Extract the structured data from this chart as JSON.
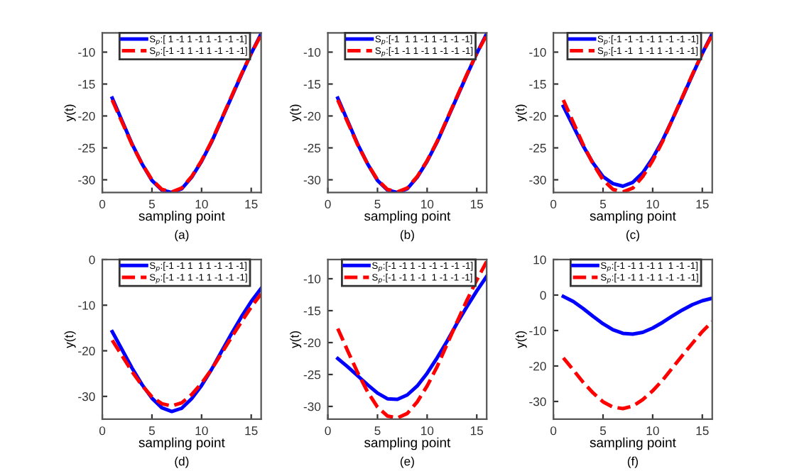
{
  "chart_data": [
    {
      "type": "line",
      "xlabel": "sampling point",
      "ylabel": "y(t)",
      "annotations": [
        "(a)"
      ],
      "x": [
        1,
        2,
        3,
        4,
        5,
        6,
        7,
        8,
        9,
        10,
        11,
        12,
        13,
        14,
        15,
        16
      ],
      "xlim": [
        0,
        16
      ],
      "xticks": [
        0,
        5,
        10,
        15
      ],
      "ylim": [
        -32,
        -7
      ],
      "yticks": [
        -30,
        -25,
        -20,
        -15,
        -10
      ],
      "legend": "top right",
      "grid": false,
      "series": [
        {
          "name": "S$_{p}$:[ 1 -1 1 -1 1 -1 -1 -1]",
          "color": "#0000ff",
          "line_style": "solid",
          "values": [
            -17.2,
            -20.8,
            -24.4,
            -27.5,
            -30.1,
            -31.6,
            -32,
            -31.4,
            -29.6,
            -27.1,
            -24.1,
            -20.6,
            -17.1,
            -13.6,
            -10.2,
            -7.1
          ]
        },
        {
          "name": "S$_{p}$:[-1 -1 1 -1 1 -1 -1 -1]",
          "color": "#ff0000",
          "line_style": "dashed",
          "values": [
            -17.5,
            -21,
            -24.5,
            -27.5,
            -30,
            -31.5,
            -31.9,
            -31.3,
            -29.5,
            -27,
            -24,
            -20.5,
            -17,
            -13.5,
            -10.2,
            -7.3
          ]
        }
      ]
    },
    {
      "type": "line",
      "xlabel": "sampling point",
      "ylabel": "y(t)",
      "annotations": [
        "(b)"
      ],
      "x": [
        1,
        2,
        3,
        4,
        5,
        6,
        7,
        8,
        9,
        10,
        11,
        12,
        13,
        14,
        15,
        16
      ],
      "xlim": [
        0,
        16
      ],
      "xticks": [
        0,
        5,
        10,
        15
      ],
      "ylim": [
        -32,
        -7
      ],
      "yticks": [
        -30,
        -25,
        -20,
        -15,
        -10
      ],
      "legend": "top right",
      "grid": false,
      "series": [
        {
          "name": "S$_{p}$:[-1  1 1 -1 1 -1 -1 -1]",
          "color": "#0000ff",
          "line_style": "solid",
          "values": [
            -17.2,
            -20.8,
            -24.4,
            -27.5,
            -30.1,
            -31.6,
            -32,
            -31.4,
            -29.6,
            -27.1,
            -24.1,
            -20.6,
            -17.1,
            -13.6,
            -10.2,
            -7.1
          ]
        },
        {
          "name": "S$_{p}$:[-1 -1 1 -1 1 -1 -1 -1]",
          "color": "#ff0000",
          "line_style": "dashed",
          "values": [
            -17.5,
            -21,
            -24.5,
            -27.5,
            -30,
            -31.5,
            -31.9,
            -31.3,
            -29.5,
            -27,
            -24,
            -20.5,
            -17,
            -13.5,
            -10.2,
            -7.3
          ]
        }
      ]
    },
    {
      "type": "line",
      "xlabel": "sampling point",
      "ylabel": "y(t)",
      "annotations": [
        "(c)"
      ],
      "x": [
        1,
        2,
        3,
        4,
        5,
        6,
        7,
        8,
        9,
        10,
        11,
        12,
        13,
        14,
        15,
        16
      ],
      "xlim": [
        0,
        16
      ],
      "xticks": [
        0,
        5,
        10,
        15
      ],
      "ylim": [
        -32,
        -7
      ],
      "yticks": [
        -30,
        -25,
        -20,
        -15,
        -10
      ],
      "legend": "top right",
      "grid": false,
      "series": [
        {
          "name": "S$_{p}$:[-1 -1 -1 -1 1 -1 -1 -1]",
          "color": "#0000ff",
          "line_style": "solid",
          "values": [
            -18.5,
            -21.6,
            -24.7,
            -27.4,
            -29.5,
            -30.6,
            -31,
            -30.4,
            -28.9,
            -26.6,
            -23.8,
            -20.5,
            -17.1,
            -13.6,
            -10.2,
            -7.1
          ]
        },
        {
          "name": "S$_{p}$:[-1 -1  1 -1 1 -1 -1 -1]",
          "color": "#ff0000",
          "line_style": "dashed",
          "values": [
            -17.5,
            -21,
            -24.5,
            -27.5,
            -30,
            -31.5,
            -31.9,
            -31.3,
            -29.5,
            -27,
            -24,
            -20.5,
            -17,
            -13.5,
            -10.2,
            -7.3
          ]
        }
      ]
    },
    {
      "type": "line",
      "xlabel": "sampling point",
      "ylabel": "y(t)",
      "annotations": [
        "(d)"
      ],
      "x": [
        1,
        2,
        3,
        4,
        5,
        6,
        7,
        8,
        9,
        10,
        11,
        12,
        13,
        14,
        15,
        16
      ],
      "xlim": [
        0,
        16
      ],
      "xticks": [
        0,
        5,
        10,
        15
      ],
      "ylim": [
        -35,
        0
      ],
      "yticks": [
        -30,
        -20,
        -10,
        0
      ],
      "legend": "top right",
      "grid": false,
      "series": [
        {
          "name": "S$_{p}$:[-1 -1 1  1 1 -1 -1 -1]",
          "color": "#0000ff",
          "line_style": "solid",
          "values": [
            -15.8,
            -19.8,
            -23.8,
            -27.4,
            -30.4,
            -32.5,
            -33.3,
            -32.6,
            -30.5,
            -27.6,
            -24.1,
            -20.2,
            -16.3,
            -12.6,
            -9.2,
            -6.3
          ]
        },
        {
          "name": "S$_{p}$:[-1 -1 1 -1 1 -1 -1 -1]",
          "color": "#ff0000",
          "line_style": "dashed",
          "values": [
            -17.7,
            -21.1,
            -24.6,
            -27.6,
            -30.1,
            -31.6,
            -32.1,
            -31.4,
            -29.6,
            -27.1,
            -24.1,
            -20.6,
            -17.1,
            -13.7,
            -10.4,
            -7.5
          ]
        }
      ]
    },
    {
      "type": "line",
      "xlabel": "sampling point",
      "ylabel": "y(t)",
      "annotations": [
        "(e)"
      ],
      "x": [
        1,
        2,
        3,
        4,
        5,
        6,
        7,
        8,
        9,
        10,
        11,
        12,
        13,
        14,
        15,
        16
      ],
      "xlim": [
        0,
        16
      ],
      "xticks": [
        0,
        5,
        10,
        15
      ],
      "ylim": [
        -32,
        -7
      ],
      "yticks": [
        -30,
        -25,
        -20,
        -15,
        -10
      ],
      "legend": "top right",
      "grid": false,
      "series": [
        {
          "name": "S$_{p}$:[-1 -1 1 -1 -1 -1 -1 -1]",
          "color": "#0000ff",
          "line_style": "solid",
          "values": [
            -22.5,
            -23.8,
            -25.2,
            -26.6,
            -27.9,
            -28.8,
            -28.9,
            -28.2,
            -26.8,
            -24.8,
            -22.4,
            -19.8,
            -17,
            -14.4,
            -11.9,
            -9.6
          ]
        },
        {
          "name": "S$_{p}$:[-1 -1 1 -1  1 -1 -1 -1]",
          "color": "#ff0000",
          "line_style": "dashed",
          "values": [
            -17.8,
            -21.3,
            -24.7,
            -27.7,
            -30.1,
            -31.5,
            -31.8,
            -31.1,
            -29.3,
            -26.8,
            -23.8,
            -20.3,
            -16.8,
            -13.4,
            -10.2,
            -7.3
          ]
        }
      ]
    },
    {
      "type": "line",
      "xlabel": "sampling point",
      "ylabel": "y(t)",
      "annotations": [
        "(f)"
      ],
      "x": [
        1,
        2,
        3,
        4,
        5,
        6,
        7,
        8,
        9,
        10,
        11,
        12,
        13,
        14,
        15,
        16
      ],
      "xlim": [
        0,
        16
      ],
      "xticks": [
        0,
        5,
        10,
        15
      ],
      "ylim": [
        -35,
        10
      ],
      "yticks": [
        -30,
        -20,
        -10,
        0,
        10
      ],
      "legend": "top right",
      "grid": false,
      "series": [
        {
          "name": "S$_{p}$:[-1 -1 1 -1 1  1 -1 -1]",
          "color": "#0000ff",
          "line_style": "solid",
          "values": [
            -0.4,
            -1.8,
            -3.8,
            -6,
            -8.1,
            -9.8,
            -10.8,
            -11,
            -10.5,
            -9.3,
            -7.7,
            -5.9,
            -4.2,
            -2.7,
            -1.6,
            -0.9
          ]
        },
        {
          "name": "S$_{p}$:[-1 -1 1 -1 1 -1 -1 -1]",
          "color": "#ff0000",
          "line_style": "dashed",
          "values": [
            -17.7,
            -21.1,
            -24.6,
            -27.6,
            -30.1,
            -31.6,
            -32,
            -31.3,
            -29.5,
            -27,
            -24,
            -20.5,
            -17,
            -13.6,
            -10.3,
            -7.5
          ]
        }
      ]
    }
  ]
}
